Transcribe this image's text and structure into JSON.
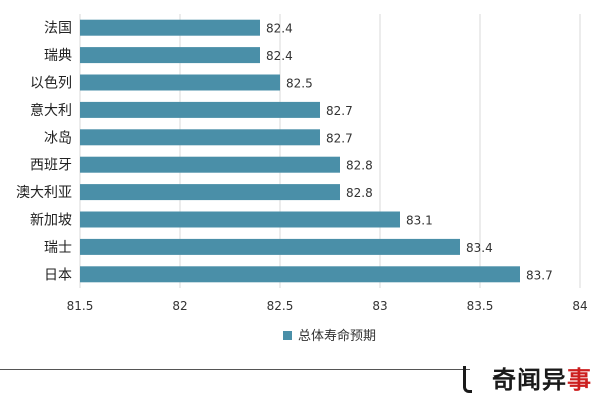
{
  "chart_data": {
    "type": "bar",
    "orientation": "horizontal",
    "categories": [
      "法国",
      "瑞典",
      "以色列",
      "意大利",
      "冰岛",
      "西班牙",
      "澳大利亚",
      "新加坡",
      "瑞士",
      "日本"
    ],
    "series": [
      {
        "name": "总体寿命预期",
        "values": [
          82.4,
          82.4,
          82.5,
          82.7,
          82.7,
          82.8,
          82.8,
          83.1,
          83.4,
          83.7
        ],
        "color": "#4a8fa8"
      }
    ],
    "xlim": [
      81.5,
      84
    ],
    "xticks": [
      "81.5",
      "82",
      "82.5",
      "83",
      "83.5",
      "84"
    ],
    "grid": "vertical",
    "legend": "bottom-center",
    "gridline_color": "#d9d9d9"
  },
  "watermark": {
    "text_main": "奇闻异",
    "text_accent": "事",
    "accent_color": "#cc1f1f"
  }
}
